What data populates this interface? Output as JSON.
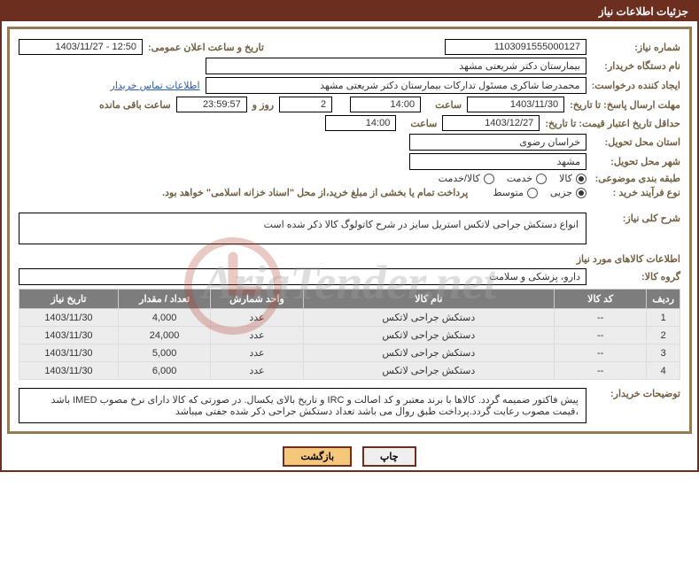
{
  "header_title": "جزئیات اطلاعات نیاز",
  "fields": {
    "need_no_label": "شماره نیاز:",
    "need_no": "1103091555000127",
    "announce_label": "تاریخ و ساعت اعلان عمومی:",
    "announce": "1403/11/27 - 12:50",
    "buyer_label": "نام دستگاه خریدار:",
    "buyer": "بیمارستان دکتر شریعتی مشهد",
    "requester_label": "ایجاد کننده درخواست:",
    "requester": "محمدرضا شاکری مسئول تدارکات بیمارستان دکتر شریعتی مشهد",
    "contact_link": "اطلاعات تماس خریدار",
    "send_deadline_label": "مهلت ارسال پاسخ: تا تاریخ:",
    "send_date": "1403/11/30",
    "time_label": "ساعت",
    "send_time": "14:00",
    "days": "2",
    "days_and": "روز و",
    "remaining": "23:59:57",
    "remaining_label": "ساعت باقی مانده",
    "validity_label": "حداقل تاریخ اعتبار قیمت: تا تاریخ:",
    "validity_date": "1403/12/27",
    "validity_time": "14:00",
    "province_label": "استان محل تحویل:",
    "province": "خراسان رضوی",
    "city_label": "شهر محل تحویل:",
    "city": "مشهد",
    "category_label": "طبقه بندی موضوعی:",
    "cat_goods": "کالا",
    "cat_service": "خدمت",
    "cat_both": "کالا/خدمت",
    "process_label": "نوع فرآیند خرید :",
    "proc_partial": "جزیی",
    "proc_medium": "متوسط",
    "process_note": "پرداخت تمام یا بخشی از مبلغ خرید،از محل \"اسناد خزانه اسلامی\" خواهد بود.",
    "desc_label": "شرح کلی نیاز:",
    "desc": "انواع دستکش جراحی لاتکس استریل سایز در شرح کاتولوگ کالا ذکر شده است",
    "goods_info_title": "اطلاعات کالاهای مورد نیاز",
    "group_label": "گروه کالا:",
    "group": "دارو، پزشکی و سلامت",
    "explain_label": "توضیحات خریدار:",
    "explain": "پیش فاکتور ضمیمه گردد. کالاها با برند معتبر و کد اصالت و IRC و تاریخ بالای یکسال. در صورتی که کالا دارای نرخ مصوب IMED باشد ،قیمت مصوب رعایت گردد.پرداخت طبق روال می باشد تعداد دستکش جراحی ذکر شده جفتی میباشد"
  },
  "table": {
    "columns": [
      "ردیف",
      "کد کالا",
      "نام کالا",
      "واحد شمارش",
      "تعداد / مقدار",
      "تاریخ نیاز"
    ],
    "col_widths": [
      "5%",
      "14%",
      "38%",
      "14%",
      "14%",
      "15%"
    ],
    "rows": [
      [
        "1",
        "--",
        "دستکش جراحی لاتکس",
        "عدد",
        "4,000",
        "1403/11/30"
      ],
      [
        "2",
        "--",
        "دستکش جراحی لاتکس",
        "عدد",
        "24,000",
        "1403/11/30"
      ],
      [
        "3",
        "--",
        "دستکش جراحی لاتکس",
        "عدد",
        "5,000",
        "1403/11/30"
      ],
      [
        "4",
        "--",
        "دستکش جراحی لاتکس",
        "عدد",
        "6,000",
        "1403/11/30"
      ]
    ]
  },
  "buttons": {
    "print": "چاپ",
    "back": "بازگشت"
  },
  "watermark": "AriaTender.net",
  "colors": {
    "header_bg": "#6b2e1f",
    "inner_border": "#927c53",
    "label_color": "#716044",
    "th_bg": "#7d7d7d",
    "td_bg": "#ececec",
    "btn_highlight": "#f5c77a"
  }
}
